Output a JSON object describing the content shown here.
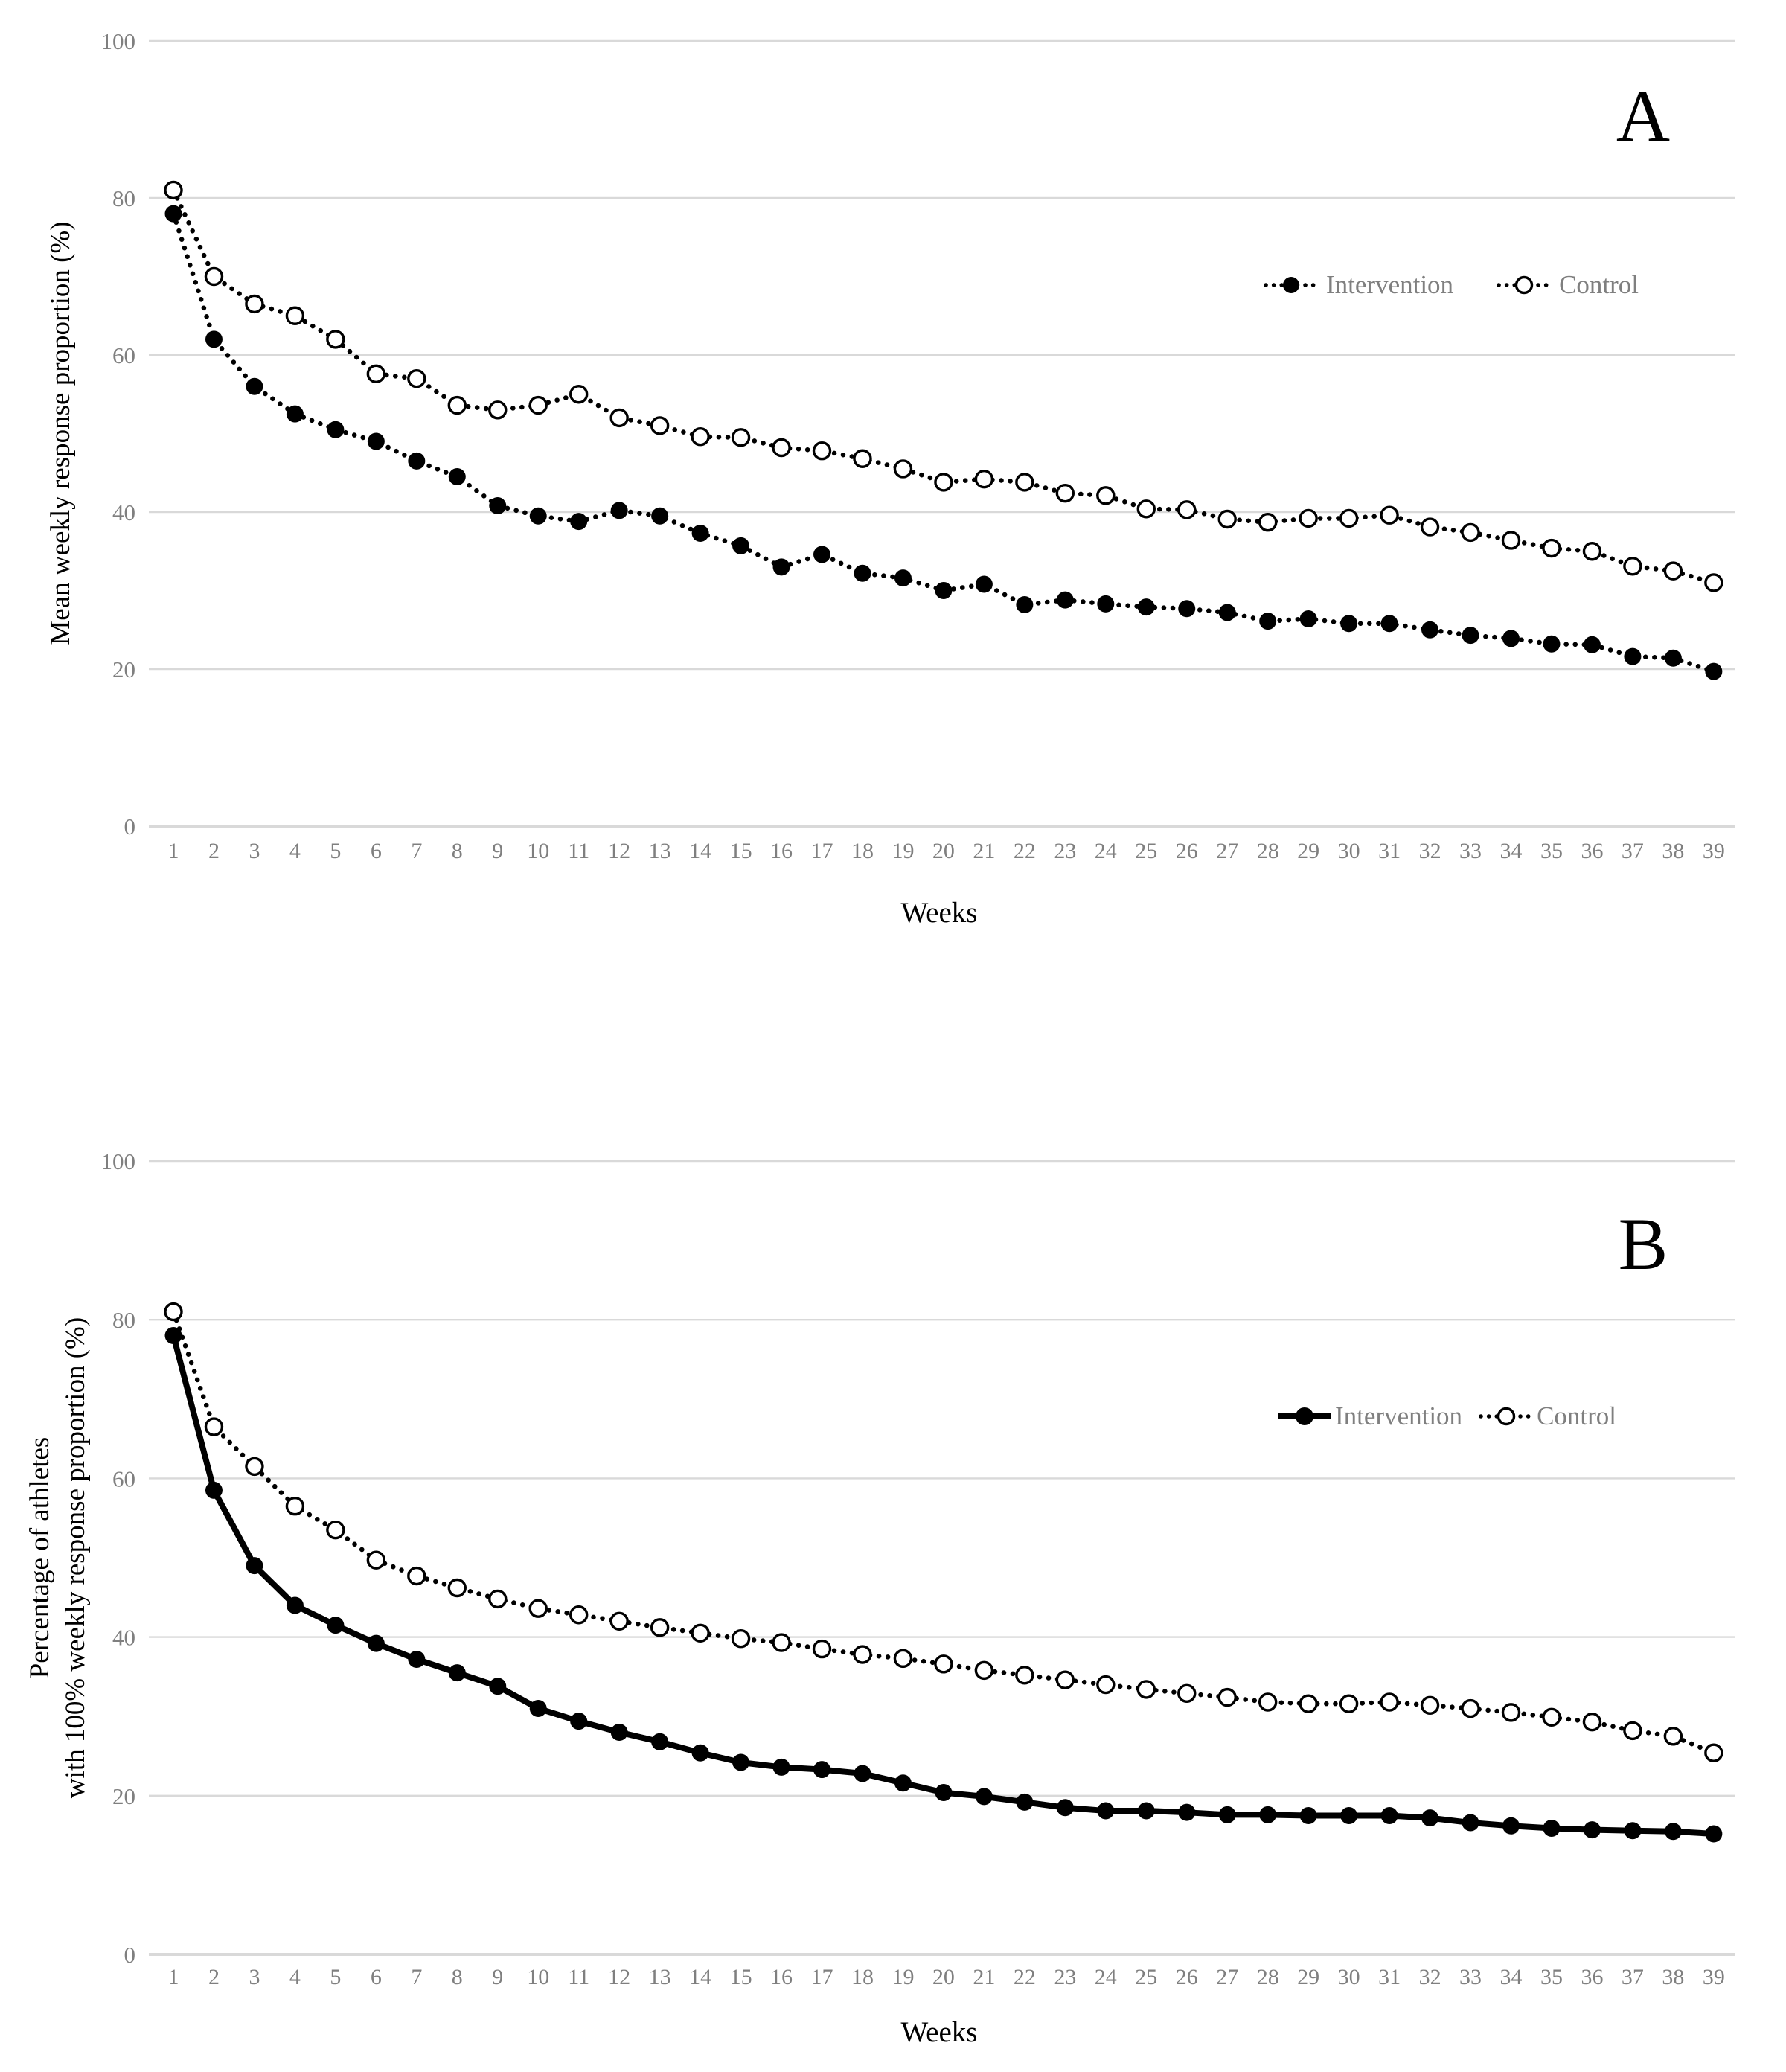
{
  "figure": {
    "background": "#ffffff",
    "panel_letters": [
      "A",
      "B"
    ]
  },
  "colors": {
    "series": "#000000",
    "grid": "#d9d9d9",
    "axis_line": "#d9d9d9",
    "tick_text": "#7f7f7f",
    "legend_text": "#7f7f7f",
    "title_text": "#000000",
    "open_marker_fill": "#ffffff"
  },
  "chart_data": [
    {
      "type": "line",
      "title_letter": "A",
      "xlabel": "Weeks",
      "ylabel_lines": [
        "Mean weekly response proportion (%)"
      ],
      "ylim": [
        0,
        100
      ],
      "yticks": [
        0,
        20,
        40,
        60,
        80,
        100
      ],
      "grid": "horizontal",
      "legend_position": "upper-right-inside",
      "x": [
        1,
        2,
        3,
        4,
        5,
        6,
        7,
        8,
        9,
        10,
        11,
        12,
        13,
        14,
        15,
        16,
        17,
        18,
        19,
        20,
        21,
        22,
        23,
        24,
        25,
        26,
        27,
        28,
        29,
        30,
        31,
        32,
        33,
        34,
        35,
        36,
        37,
        38,
        39
      ],
      "series": [
        {
          "name": "Intervention",
          "marker": "filled-circle",
          "line_style": "dotted",
          "color": "#000000",
          "values": [
            78,
            62,
            56,
            52.5,
            50.5,
            49,
            46.5,
            44.5,
            40.8,
            39.5,
            38.8,
            40.2,
            39.5,
            37.3,
            35.7,
            33,
            34.6,
            32.2,
            31.6,
            30,
            30.8,
            28.2,
            28.8,
            28.3,
            27.9,
            27.7,
            27.2,
            26.1,
            26.4,
            25.8,
            25.8,
            25,
            24.3,
            23.9,
            23.2,
            23.1,
            21.6,
            21.4,
            19.7
          ]
        },
        {
          "name": "Control",
          "marker": "open-circle",
          "line_style": "dotted",
          "color": "#000000",
          "values": [
            81,
            70,
            66.5,
            65,
            62,
            57.6,
            57,
            53.6,
            53,
            53.6,
            55,
            52,
            51,
            49.6,
            49.5,
            48.2,
            47.8,
            46.8,
            45.5,
            43.8,
            44.2,
            43.8,
            42.4,
            42.1,
            40.4,
            40.3,
            39.1,
            38.7,
            39.2,
            39.2,
            39.6,
            38.1,
            37.4,
            36.4,
            35.4,
            35,
            33.1,
            32.5,
            31
          ]
        }
      ]
    },
    {
      "type": "line",
      "title_letter": "B",
      "xlabel": "Weeks",
      "ylabel_lines": [
        "Percentage of athletes",
        "with 100% weekly response proportion (%)"
      ],
      "ylim": [
        0,
        100
      ],
      "yticks": [
        0,
        20,
        40,
        60,
        80,
        100
      ],
      "grid": "horizontal",
      "legend_position": "upper-right-inside",
      "x": [
        1,
        2,
        3,
        4,
        5,
        6,
        7,
        8,
        9,
        10,
        11,
        12,
        13,
        14,
        15,
        16,
        17,
        18,
        19,
        20,
        21,
        22,
        23,
        24,
        25,
        26,
        27,
        28,
        29,
        30,
        31,
        32,
        33,
        34,
        35,
        36,
        37,
        38,
        39
      ],
      "series": [
        {
          "name": "Intervention",
          "marker": "filled-circle",
          "line_style": "solid",
          "color": "#000000",
          "values": [
            78,
            58.5,
            49,
            44,
            41.5,
            39.2,
            37.2,
            35.5,
            33.8,
            31,
            29.4,
            28,
            26.8,
            25.4,
            24.2,
            23.6,
            23.3,
            22.8,
            21.6,
            20.4,
            19.9,
            19.2,
            18.5,
            18.1,
            18.1,
            17.9,
            17.6,
            17.6,
            17.5,
            17.5,
            17.5,
            17.2,
            16.6,
            16.2,
            15.9,
            15.7,
            15.6,
            15.5,
            15.2
          ]
        },
        {
          "name": "Control",
          "marker": "open-circle",
          "line_style": "dotted",
          "color": "#000000",
          "values": [
            81,
            66.5,
            61.5,
            56.5,
            53.5,
            49.7,
            47.7,
            46.2,
            44.8,
            43.6,
            42.8,
            42,
            41.2,
            40.5,
            39.8,
            39.3,
            38.5,
            37.8,
            37.3,
            36.6,
            35.8,
            35.2,
            34.6,
            34,
            33.4,
            32.9,
            32.4,
            31.8,
            31.6,
            31.6,
            31.8,
            31.4,
            31,
            30.5,
            29.9,
            29.3,
            28.2,
            27.5,
            25.4
          ]
        }
      ]
    }
  ]
}
